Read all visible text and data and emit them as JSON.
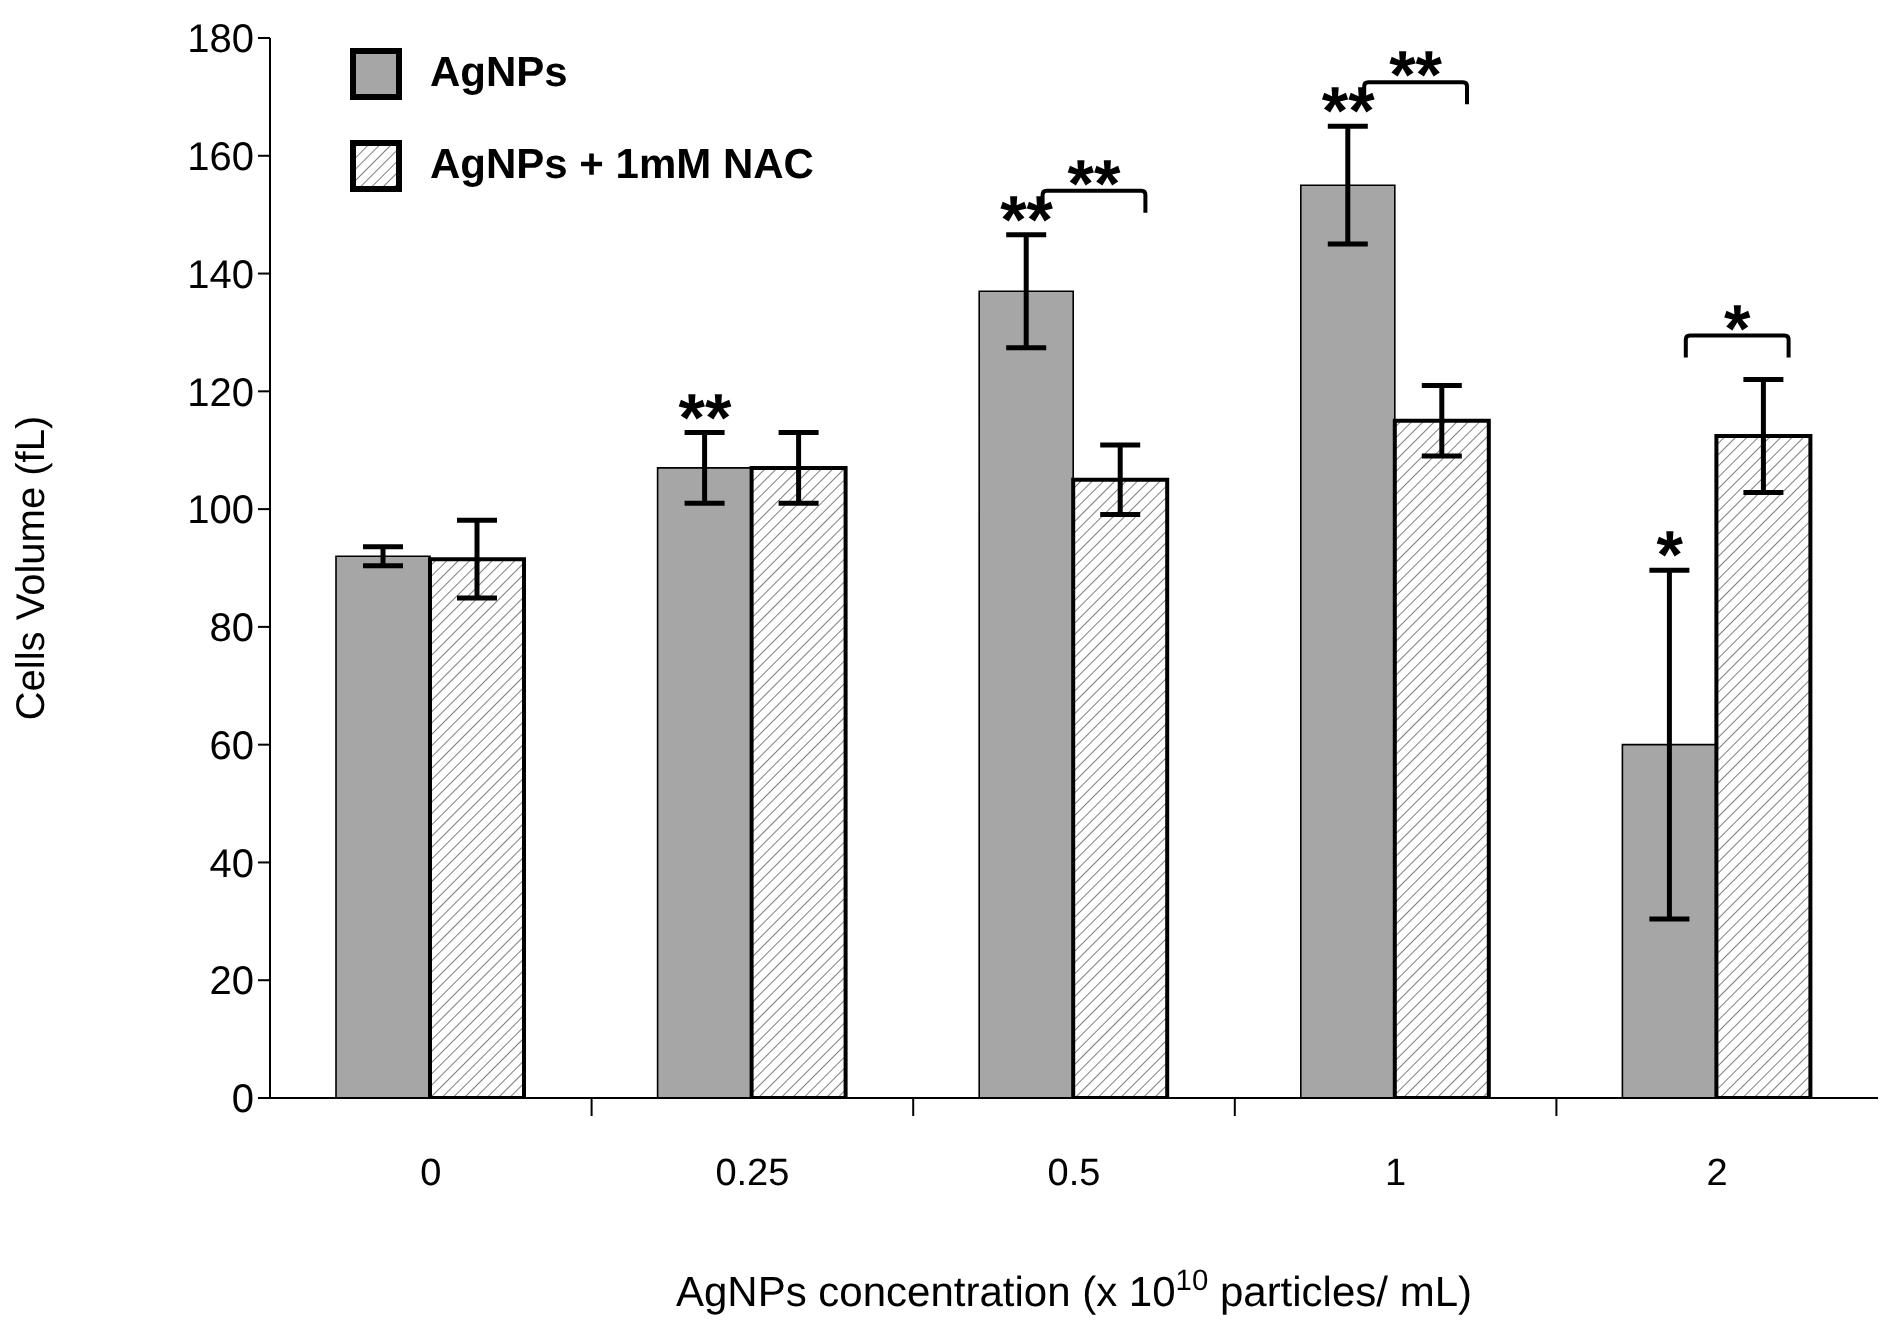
{
  "chart_data": {
    "type": "bar",
    "ylabel": "Cells Volume (fL)",
    "xlabel": "AgNPs concentration (x 10$^{10}$ particles/ mL)",
    "categories": [
      "0",
      "0.25",
      "0.5",
      "1",
      "2"
    ],
    "series": [
      {
        "name": "AgNPs",
        "color": "#a6a6a6",
        "values": [
          92,
          107,
          137,
          155,
          60
        ],
        "errors": [
          1.6,
          6,
          9.6,
          10,
          29.6
        ]
      },
      {
        "name": "AgNPs + 1mM NAC",
        "color": "#000000",
        "values": [
          91.5,
          107,
          105,
          115,
          112.4
        ],
        "errors": [
          6.6,
          6,
          5.9,
          6,
          9.6
        ]
      }
    ],
    "ylim": [
      0,
      180
    ],
    "yticks": [
      0,
      20,
      40,
      60,
      80,
      100,
      120,
      140,
      160,
      180
    ],
    "legend": "top left",
    "annotations": [
      {
        "text": "**",
        "x": "0.25",
        "y": 107
      },
      {
        "text": "**",
        "x": "0.5",
        "y": 137
      },
      "**",
      {
        "text": "**",
        "x": "1",
        "y": 155
      },
      "**",
      {
        "text": "*",
        "x": "2",
        "y": 60
      },
      "*"
    ]
  }
}
